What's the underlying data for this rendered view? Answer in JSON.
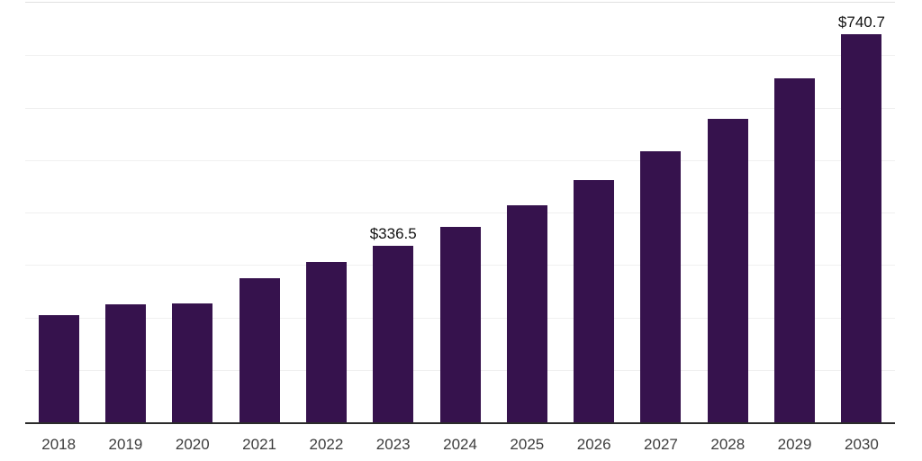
{
  "chart_data": {
    "type": "bar",
    "title": "",
    "xlabel": "",
    "ylabel": "",
    "categories": [
      "2018",
      "2019",
      "2020",
      "2021",
      "2022",
      "2023",
      "2024",
      "2025",
      "2026",
      "2027",
      "2028",
      "2029",
      "2030"
    ],
    "values": [
      204,
      225,
      226,
      275,
      305,
      336.5,
      372,
      414,
      462,
      517,
      578,
      655,
      740.7
    ],
    "annotations": [
      {
        "category": "2023",
        "text": "$336.5"
      },
      {
        "category": "2030",
        "text": "$740.7"
      }
    ],
    "ylim": [
      0,
      800
    ],
    "grid_step": 100,
    "grid": "horizontal",
    "legend": "none",
    "y_axis_labels_visible": false,
    "colors": {
      "bar": "#36124d",
      "gridline": "#f0f0f0",
      "plot_top_border": "#e0e0e0",
      "axis_line": "#2b2b2b",
      "tick_label": "#3d3d3d",
      "annotation": "#111111",
      "background": "#ffffff"
    }
  }
}
